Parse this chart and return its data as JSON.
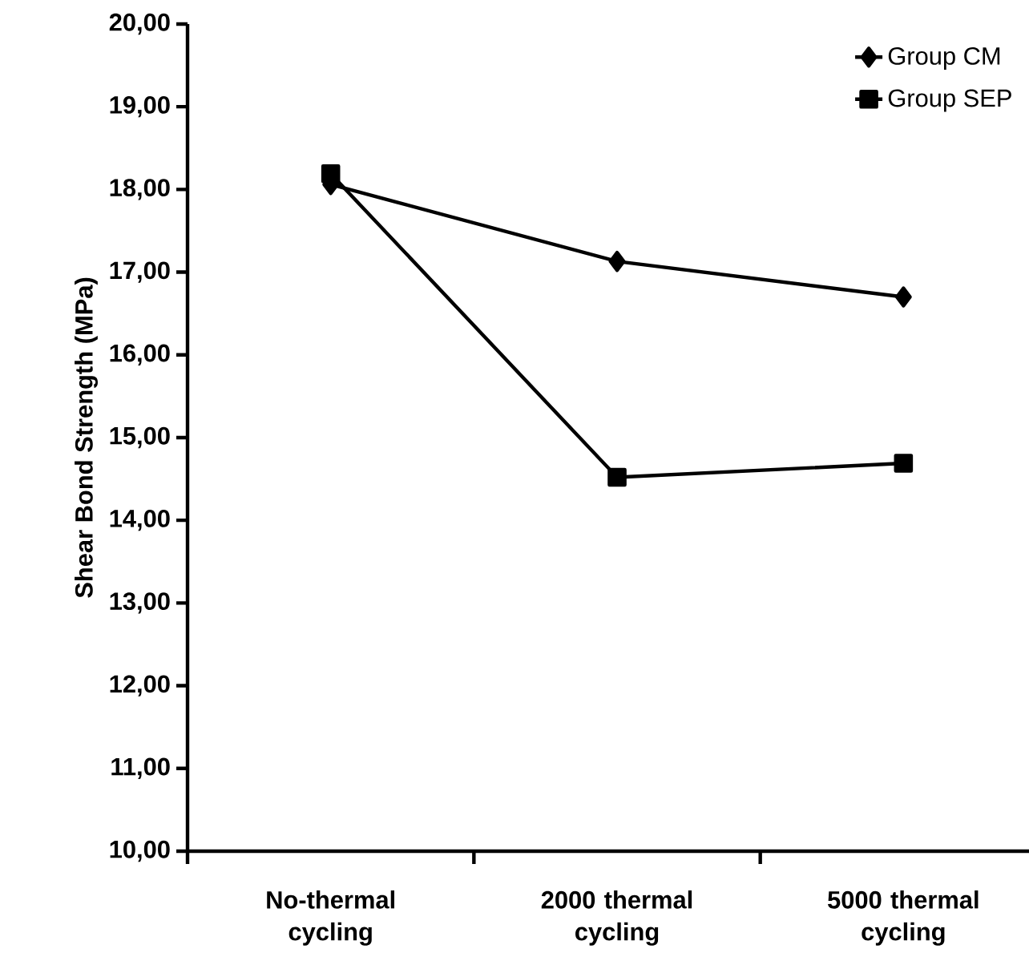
{
  "chart_data": {
    "type": "line",
    "ylabel": "Shear Bond Strength (MPa)",
    "categories": [
      "No-thermal cycling",
      "2000 thermal cycling",
      "5000 thermal cycling"
    ],
    "series": [
      {
        "name": "Group CM",
        "color": "#000000",
        "marker": "diamond",
        "values": [
          18.06,
          17.13,
          16.7
        ]
      },
      {
        "name": "Group SEP",
        "color": "#000000",
        "marker": "square",
        "values": [
          18.19,
          14.52,
          14.69
        ]
      }
    ],
    "ylim": [
      10,
      20
    ],
    "yticks": [
      {
        "value": 10,
        "label": "10,00"
      },
      {
        "value": 11,
        "label": "11,00"
      },
      {
        "value": 12,
        "label": "12,00"
      },
      {
        "value": 13,
        "label": "13,00"
      },
      {
        "value": 14,
        "label": "14,00"
      },
      {
        "value": 15,
        "label": "15,00"
      },
      {
        "value": 16,
        "label": "16,00"
      },
      {
        "value": 17,
        "label": "17,00"
      },
      {
        "value": 18,
        "label": "18,00"
      },
      {
        "value": 19,
        "label": "19,00"
      },
      {
        "value": 20,
        "label": "20,00"
      }
    ],
    "grid": false,
    "legend": "top right",
    "line_style": "solid"
  }
}
